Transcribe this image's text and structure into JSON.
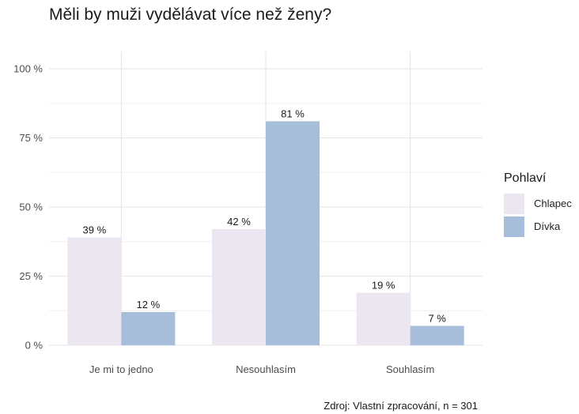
{
  "title": "Měli by muži vydělávat více než ženy?",
  "caption": "Zdroj: Vlastní zpracování, n = 301",
  "legend": {
    "title": "Pohlaví",
    "items": [
      {
        "label": "Chlapec",
        "color": "#ebe6f0"
      },
      {
        "label": "Dívka",
        "color": "#a7bedb"
      }
    ]
  },
  "chart_data": {
    "type": "bar",
    "title": "Měli by muži vydělávat více než ženy?",
    "xlabel": "",
    "ylabel": "",
    "categories": [
      "Je mi to jedno",
      "Nesouhlasím",
      "Souhlasím"
    ],
    "series": [
      {
        "name": "Chlapec",
        "values": [
          39,
          42,
          19
        ],
        "labels": [
          "39 %",
          "42 %",
          "19 %"
        ],
        "color": "#ebe6f0"
      },
      {
        "name": "Dívka",
        "values": [
          12,
          81,
          7
        ],
        "labels": [
          "12 %",
          "81 %",
          "7 %"
        ],
        "color": "#a7bedb"
      }
    ],
    "ylim": [
      0,
      100
    ],
    "yticks": [
      0,
      25,
      50,
      75,
      100
    ],
    "ytick_labels": [
      "0 %",
      "25 %",
      "50 %",
      "75 %",
      "100 %"
    ],
    "grid": true,
    "legend_position": "right"
  }
}
